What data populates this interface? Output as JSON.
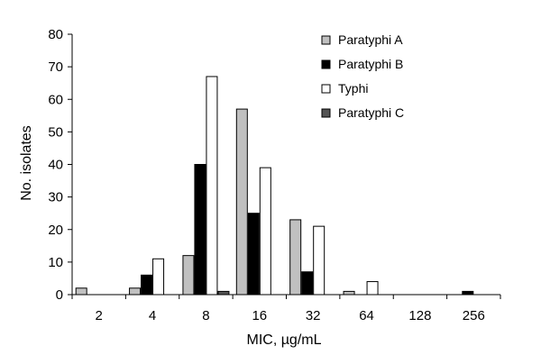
{
  "chart_data": {
    "type": "bar",
    "categories": [
      "2",
      "4",
      "8",
      "16",
      "32",
      "64",
      "128",
      "256"
    ],
    "series": [
      {
        "name": "Paratyphi A",
        "values": [
          2,
          2,
          12,
          57,
          23,
          1,
          0,
          0
        ],
        "color": "#c0c0c0"
      },
      {
        "name": "Paratyphi B",
        "values": [
          0,
          6,
          40,
          25,
          7,
          0,
          0,
          1
        ],
        "color": "#000000"
      },
      {
        "name": "Typhi",
        "values": [
          0,
          11,
          67,
          39,
          21,
          4,
          0,
          0
        ],
        "color": "#ffffff"
      },
      {
        "name": "Paratyphi C",
        "values": [
          0,
          0,
          1,
          0,
          0,
          0,
          0,
          0
        ],
        "color": "#555555"
      }
    ],
    "title": "",
    "xlabel": "MIC, µg/mL",
    "ylabel": "No. isolates",
    "ylim": [
      0,
      80
    ],
    "yticks": [
      0,
      10,
      20,
      30,
      40,
      50,
      60,
      70,
      80
    ],
    "grid": false,
    "legend_position": "top-right"
  }
}
